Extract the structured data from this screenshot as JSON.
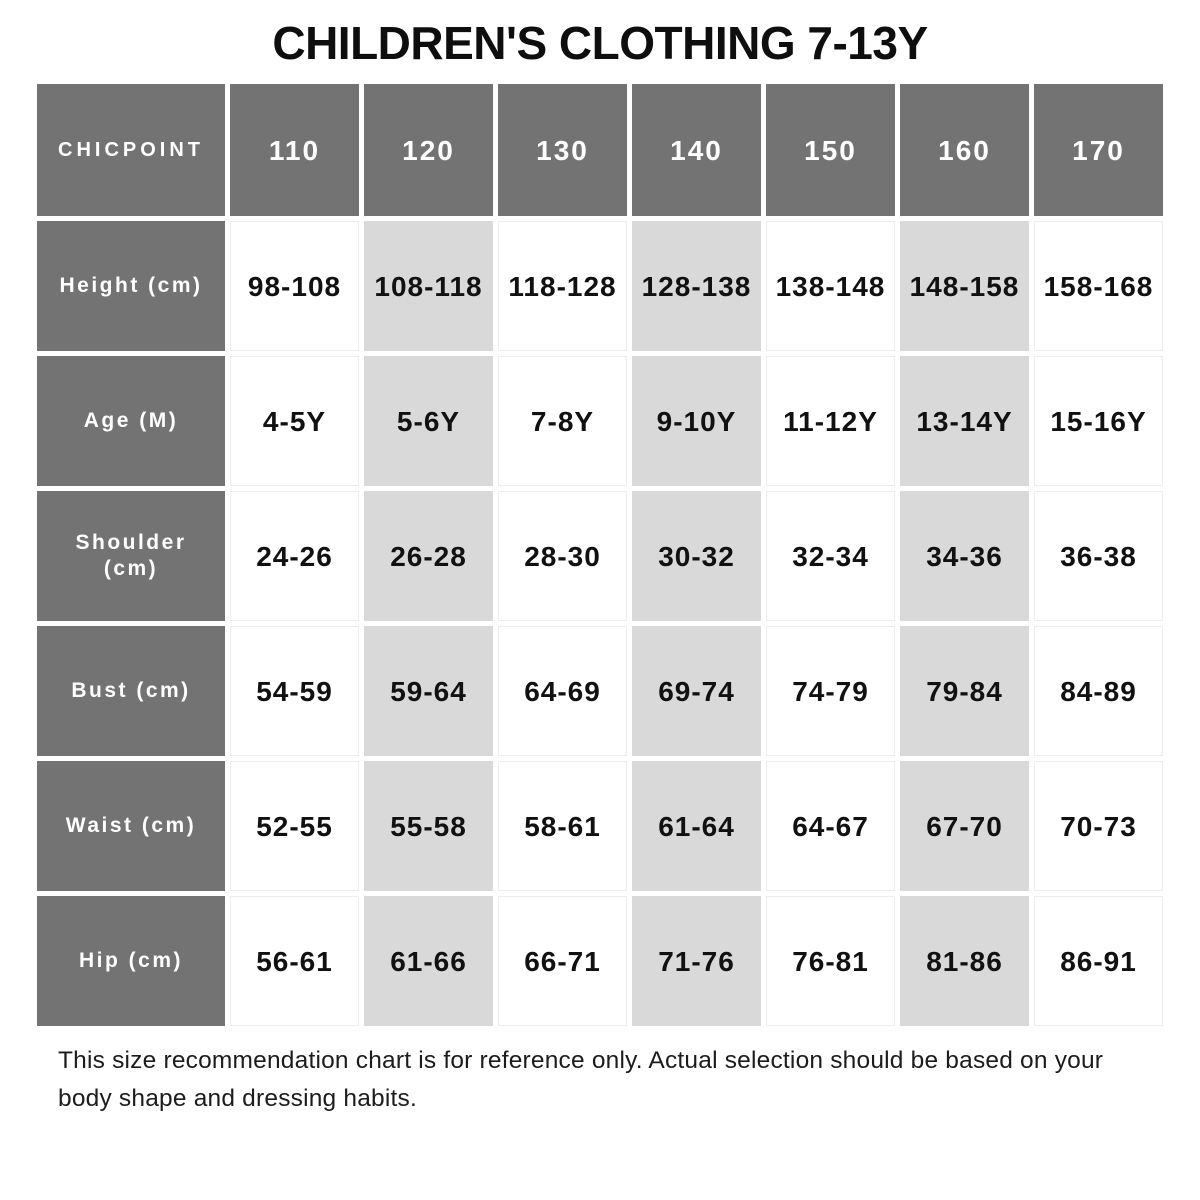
{
  "title": "CHILDREN'S CLOTHING 7-13Y",
  "table": {
    "corner_label": "CHICPOINT",
    "sizes": [
      "110",
      "120",
      "130",
      "140",
      "150",
      "160",
      "170"
    ],
    "rows": [
      {
        "label": "Height (cm)",
        "values": [
          "98-108",
          "108-118",
          "118-128",
          "128-138",
          "138-148",
          "148-158",
          "158-168"
        ]
      },
      {
        "label": "Age (M)",
        "values": [
          "4-5Y",
          "5-6Y",
          "7-8Y",
          "9-10Y",
          "11-12Y",
          "13-14Y",
          "15-16Y"
        ]
      },
      {
        "label": "Shoulder (cm)",
        "values": [
          "24-26",
          "26-28",
          "28-30",
          "30-32",
          "32-34",
          "34-36",
          "36-38"
        ]
      },
      {
        "label": "Bust (cm)",
        "values": [
          "54-59",
          "59-64",
          "64-69",
          "69-74",
          "74-79",
          "79-84",
          "84-89"
        ]
      },
      {
        "label": "Waist (cm)",
        "values": [
          "52-55",
          "55-58",
          "58-61",
          "61-64",
          "64-67",
          "67-70",
          "70-73"
        ]
      },
      {
        "label": "Hip (cm)",
        "values": [
          "56-61",
          "61-66",
          "66-71",
          "71-76",
          "76-81",
          "81-86",
          "86-91"
        ]
      }
    ]
  },
  "footer_note": "This size recommendation chart is for reference only. Actual selection should be based on your body shape and dressing habits.",
  "colors": {
    "header_bg": "#737373",
    "header_text": "#ffffff",
    "alt_col_bg": "#d9d9d9",
    "cell_bg": "#ffffff",
    "body_text": "#111111"
  }
}
